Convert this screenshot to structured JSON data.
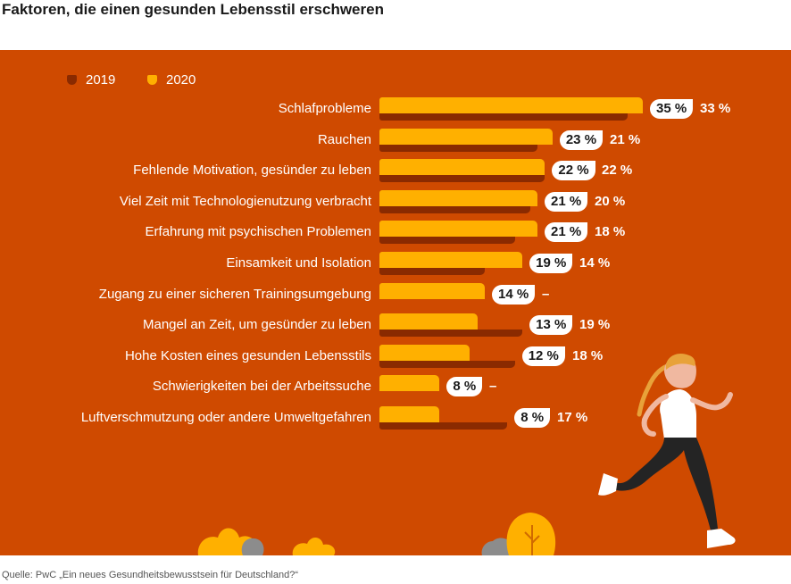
{
  "title": "Faktoren, die einen gesunden Lebensstil erschweren",
  "source": "Quelle: PwC „Ein neues Gesundheitsbewusstsein für Deutschland?“",
  "colors": {
    "background": "#cf4a00",
    "bar_2020": "#ffb000",
    "bar_2019": "#8a2a00",
    "text": "#ffffff",
    "pill": "#ffffff"
  },
  "chart_data": {
    "type": "bar",
    "orientation": "horizontal",
    "title": "Faktoren, die einen gesunden Lebensstil erschweren",
    "xlabel": "",
    "ylabel": "",
    "xlim": [
      0,
      35
    ],
    "grid": false,
    "legend_position": "top-left",
    "categories": [
      "Schlafprobleme",
      "Rauchen",
      "Fehlende Motivation, gesünder zu  leben",
      "Viel Zeit mit Technologienutzung verbracht",
      "Erfahrung mit psychischen Problemen",
      "Einsamkeit und Isolation",
      "Zugang zu einer sicheren Trainingsumgebung",
      "Mangel an Zeit, um gesünder zu leben",
      "Hohe Kosten eines gesunden Lebensstils",
      "Schwierigkeiten bei der Arbeitssuche",
      "Luftverschmutzung oder andere Umweltgefahren"
    ],
    "series": [
      {
        "name": "2020",
        "values": [
          35,
          23,
          22,
          21,
          21,
          19,
          14,
          13,
          12,
          8,
          8
        ],
        "labels": [
          "35 %",
          "23 %",
          "22 %",
          "21 %",
          "21 %",
          "19 %",
          "14 %",
          "13 %",
          "12 %",
          "8 %",
          "8 %"
        ]
      },
      {
        "name": "2019",
        "values": [
          33,
          21,
          22,
          20,
          18,
          14,
          null,
          19,
          18,
          null,
          17
        ],
        "labels": [
          "33 %",
          "21 %",
          "22 %",
          "20 %",
          "18 %",
          "14 %",
          "–",
          "19 %",
          "18 %",
          "–",
          "17 %"
        ]
      }
    ]
  }
}
